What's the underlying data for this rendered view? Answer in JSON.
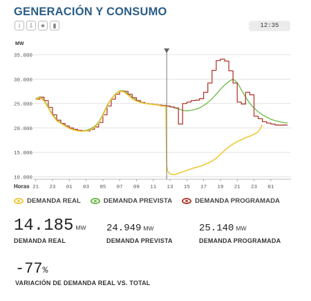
{
  "header": {
    "title": "GENERACIÓN Y CONSUMO",
    "time": "12:35",
    "tools": [
      {
        "icon": "info-icon",
        "glyph": "i"
      },
      {
        "icon": "download-icon",
        "glyph": "⇩"
      },
      {
        "icon": "star-icon",
        "glyph": "★"
      },
      {
        "icon": "bar-chart-icon",
        "glyph": "▮"
      }
    ]
  },
  "chart_data": {
    "type": "line",
    "ylabel": "MW",
    "xlabel": "Horas",
    "ylim": [
      9500,
      36000
    ],
    "yticks": [
      "35.000",
      "30.000",
      "25.000",
      "20.000",
      "15.000",
      "10.000"
    ],
    "ytick_values": [
      35000,
      30000,
      25000,
      20000,
      15000,
      10000
    ],
    "xticks": [
      "21",
      "23",
      "01",
      "03",
      "05",
      "07",
      "09",
      "11",
      "13",
      "15",
      "17",
      "19",
      "21",
      "23",
      "01"
    ],
    "xtick_positions": [
      0,
      2,
      4,
      6,
      8,
      10,
      12,
      14,
      16,
      18,
      20,
      22,
      24,
      26,
      28
    ],
    "x_range": [
      -0.3,
      30.4
    ],
    "now_marker_x": 15.6,
    "grid": "horizontal",
    "colors": {
      "real": "#f0c935",
      "prevista": "#6ab843",
      "programada": "#b03a2e",
      "marker": "#777777"
    },
    "series": [
      {
        "name": "DEMANDA REAL",
        "x": [
          0,
          0.5,
          1,
          1.5,
          2,
          2.5,
          3,
          3.5,
          4,
          4.5,
          5,
          5.5,
          6,
          6.5,
          7,
          7.5,
          8,
          8.5,
          9,
          9.5,
          10,
          10.5,
          11,
          11.5,
          12,
          12.5,
          13,
          13.5,
          14,
          14.5,
          15,
          15.5,
          15.6,
          15.7,
          16,
          16.5,
          17,
          17.5,
          18,
          18.5,
          19,
          19.5,
          20,
          20.5,
          21,
          21.5,
          22,
          22.5,
          23,
          23.5,
          24,
          24.5,
          25,
          25.5,
          26,
          26.5,
          27
        ],
        "values": [
          25800,
          26300,
          25500,
          24100,
          22600,
          21500,
          20900,
          20400,
          19900,
          19600,
          19400,
          19300,
          19400,
          19600,
          20100,
          21000,
          22600,
          24400,
          25900,
          26900,
          27500,
          27400,
          26700,
          25900,
          25500,
          25200,
          25000,
          24900,
          24800,
          24700,
          24500,
          24400,
          12500,
          11200,
          10600,
          10400,
          10700,
          11000,
          11300,
          11600,
          11900,
          12100,
          12400,
          12800,
          13200,
          13800,
          14600,
          15400,
          16100,
          16700,
          17200,
          17600,
          18000,
          18300,
          18700,
          19200,
          20600
        ]
      },
      {
        "name": "DEMANDA PREVISTA",
        "x": [
          0,
          0.5,
          1,
          1.5,
          2,
          2.5,
          3,
          3.5,
          4,
          4.5,
          5,
          5.5,
          6,
          6.5,
          7,
          7.5,
          8,
          8.5,
          9,
          9.5,
          10,
          10.5,
          11,
          11.5,
          12,
          12.5,
          13,
          13.5,
          14,
          14.5,
          15,
          15.5,
          16,
          16.5,
          17,
          17.5,
          18,
          18.5,
          19,
          19.5,
          20,
          20.5,
          21,
          21.5,
          22,
          22.5,
          23,
          23.5,
          24,
          24.5,
          25,
          25.5,
          26,
          26.5,
          27,
          27.5,
          28,
          28.5,
          29,
          29.5,
          30
        ],
        "values": [
          26000,
          26400,
          25700,
          24300,
          22800,
          21700,
          21000,
          20500,
          20000,
          19700,
          19500,
          19400,
          19500,
          19800,
          20300,
          21200,
          22800,
          24600,
          26000,
          27000,
          27600,
          27600,
          27000,
          26300,
          25700,
          25300,
          25100,
          24900,
          24800,
          24700,
          24600,
          24500,
          24400,
          24200,
          23900,
          23600,
          23500,
          23600,
          23800,
          24100,
          24600,
          25200,
          26000,
          26900,
          27900,
          28800,
          29500,
          30000,
          29300,
          27800,
          26300,
          25000,
          24100,
          23300,
          22700,
          22200,
          21800,
          21500,
          21300,
          21100,
          21000
        ]
      },
      {
        "name": "DEMANDA PROGRAMADA",
        "x": [
          0,
          0.5,
          1,
          1.5,
          2,
          2.5,
          3,
          3.5,
          4,
          4.5,
          5,
          5.5,
          6,
          6.5,
          7,
          7.5,
          8,
          8.5,
          9,
          9.5,
          10,
          10.5,
          11,
          11.5,
          12,
          12.5,
          13,
          13.5,
          14,
          14.5,
          15,
          15.5,
          16,
          16.5,
          17,
          17.5,
          18,
          18.5,
          19,
          19.5,
          20,
          20.5,
          21,
          21.5,
          22,
          22.5,
          23,
          23.5,
          24,
          24.5,
          25,
          25.5,
          26,
          26.5,
          27,
          27.5,
          28,
          28.5,
          29,
          29.5,
          30
        ],
        "values": [
          25900,
          26300,
          25600,
          24200,
          22700,
          21600,
          20900,
          20400,
          20000,
          19700,
          19500,
          19400,
          19400,
          19700,
          20200,
          21100,
          22700,
          24500,
          25900,
          26900,
          27500,
          27500,
          26900,
          26200,
          25600,
          25200,
          25000,
          24900,
          24800,
          24700,
          24600,
          24500,
          24300,
          24100,
          20800,
          25000,
          25300,
          25600,
          25700,
          26000,
          27300,
          29200,
          31800,
          33800,
          34100,
          33700,
          31700,
          29200,
          25300,
          24900,
          27300,
          26800,
          22400,
          21900,
          21300,
          21000,
          20800,
          20600,
          20600,
          20600,
          20600
        ]
      }
    ]
  },
  "legend": [
    {
      "label": "DEMANDA REAL",
      "color": "#f0c935"
    },
    {
      "label": "DEMANDA PREVISTA",
      "color": "#6ab843"
    },
    {
      "label": "DEMANDA PROGRAMADA",
      "color": "#b03a2e"
    }
  ],
  "stats": {
    "real": {
      "value": "14.185",
      "unit": "MW",
      "label": "DEMANDA REAL"
    },
    "prevista": {
      "value": "24.949",
      "unit": "MW",
      "label": "DEMANDA PREVISTA"
    },
    "programada": {
      "value": "25.140",
      "unit": "MW",
      "label": "DEMANDA PROGRAMADA"
    },
    "variacion": {
      "value": "-77",
      "unit": "%",
      "label": "VARIACIÓN DE DEMANDA REAL VS. TOTAL"
    }
  }
}
